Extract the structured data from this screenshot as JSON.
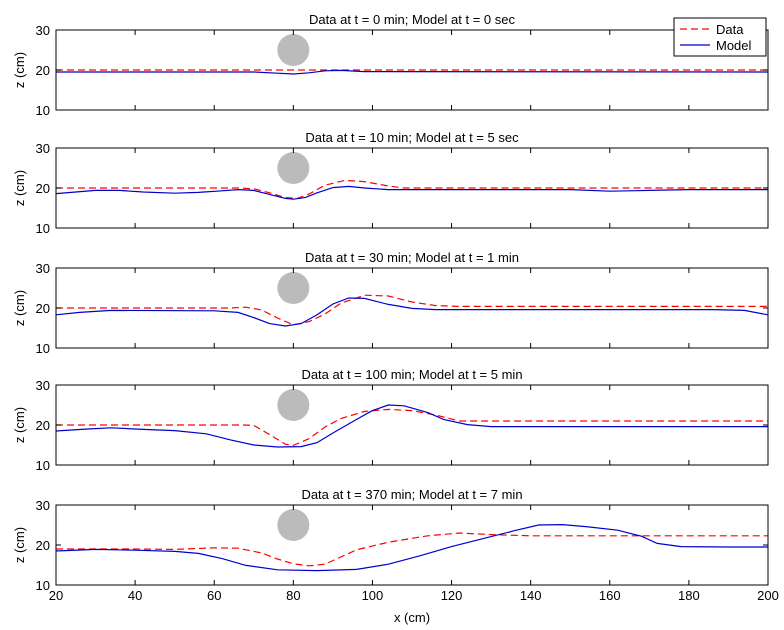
{
  "chart_data": {
    "type": "line",
    "xlabel": "x (cm)",
    "xlim": [
      20,
      200
    ],
    "xticks": [
      20,
      40,
      60,
      80,
      100,
      120,
      140,
      160,
      180,
      200
    ],
    "ylabel": "z (cm)",
    "ylim": [
      10,
      30
    ],
    "yticks": [
      10,
      20,
      30
    ],
    "grid": false,
    "legend": {
      "placement": "top-right",
      "entries": [
        {
          "label": "Data",
          "color": "#ff0000",
          "style": "dashed"
        },
        {
          "label": "Model",
          "color": "#0000cc",
          "style": "solid"
        }
      ]
    },
    "cylinder": {
      "x": 80,
      "z": 25,
      "radius": 4,
      "color": "#bbbbbb"
    },
    "panels": [
      {
        "title": "Data at t = 0 min; Model at t = 0 sec",
        "series": [
          {
            "name": "Data",
            "points": [
              [
                20,
                20
              ],
              [
                200,
                20
              ]
            ]
          },
          {
            "name": "Model",
            "points": [
              [
                20,
                19.5
              ],
              [
                70,
                19.5
              ],
              [
                76,
                19.2
              ],
              [
                80,
                19.0
              ],
              [
                84,
                19.3
              ],
              [
                88,
                19.8
              ],
              [
                92,
                19.9
              ],
              [
                98,
                19.6
              ],
              [
                200,
                19.5
              ]
            ]
          }
        ]
      },
      {
        "title": "Data at t = 10 min; Model at t = 5 sec",
        "series": [
          {
            "name": "Data",
            "points": [
              [
                20,
                20
              ],
              [
                66,
                20
              ],
              [
                70,
                19.8
              ],
              [
                74,
                18.8
              ],
              [
                78,
                17.6
              ],
              [
                81,
                17.4
              ],
              [
                84,
                18.5
              ],
              [
                88,
                20.7
              ],
              [
                93,
                21.9
              ],
              [
                98,
                21.6
              ],
              [
                104,
                20.5
              ],
              [
                108,
                20
              ],
              [
                200,
                20
              ]
            ]
          },
          {
            "name": "Model",
            "points": [
              [
                20,
                18.6
              ],
              [
                25,
                19
              ],
              [
                30,
                19.4
              ],
              [
                36,
                19.4
              ],
              [
                42,
                19
              ],
              [
                50,
                18.7
              ],
              [
                56,
                18.9
              ],
              [
                62,
                19.3
              ],
              [
                66,
                19.6
              ],
              [
                70,
                19.4
              ],
              [
                74,
                18.4
              ],
              [
                78,
                17.4
              ],
              [
                80,
                17.2
              ],
              [
                83,
                17.6
              ],
              [
                86,
                18.8
              ],
              [
                90,
                20.1
              ],
              [
                94,
                20.4
              ],
              [
                98,
                20
              ],
              [
                104,
                19.6
              ],
              [
                150,
                19.6
              ],
              [
                160,
                19.2
              ],
              [
                170,
                19.4
              ],
              [
                180,
                19.6
              ],
              [
                190,
                19.6
              ],
              [
                200,
                19.6
              ]
            ]
          }
        ]
      },
      {
        "title": "Data at t = 30 min; Model at t = 1 min",
        "series": [
          {
            "name": "Data",
            "points": [
              [
                20,
                20
              ],
              [
                64,
                20
              ],
              [
                68,
                20.2
              ],
              [
                72,
                19.5
              ],
              [
                76,
                17.5
              ],
              [
                80,
                15.8
              ],
              [
                84,
                16.6
              ],
              [
                88,
                18.5
              ],
              [
                92,
                21.2
              ],
              [
                98,
                23.2
              ],
              [
                104,
                23
              ],
              [
                110,
                21.5
              ],
              [
                116,
                20.6
              ],
              [
                122,
                20.4
              ],
              [
                200,
                20.4
              ]
            ]
          },
          {
            "name": "Model",
            "points": [
              [
                20,
                18.3
              ],
              [
                26,
                18.9
              ],
              [
                34,
                19.4
              ],
              [
                60,
                19.3
              ],
              [
                66,
                18.9
              ],
              [
                70,
                17.6
              ],
              [
                74,
                16.1
              ],
              [
                78,
                15.5
              ],
              [
                82,
                16.1
              ],
              [
                86,
                18.3
              ],
              [
                90,
                21
              ],
              [
                94,
                22.5
              ],
              [
                98,
                22.4
              ],
              [
                104,
                20.9
              ],
              [
                110,
                19.9
              ],
              [
                116,
                19.6
              ],
              [
                186,
                19.6
              ],
              [
                194,
                19.4
              ],
              [
                200,
                18.3
              ]
            ]
          }
        ]
      },
      {
        "title": "Data at t = 100 min; Model at t = 5 min",
        "series": [
          {
            "name": "Data",
            "points": [
              [
                20,
                20
              ],
              [
                60,
                20
              ],
              [
                67,
                20
              ],
              [
                70,
                19.9
              ],
              [
                74,
                17.6
              ],
              [
                78,
                15.2
              ],
              [
                80,
                14.9
              ],
              [
                84,
                16.6
              ],
              [
                88,
                19.5
              ],
              [
                92,
                21.6
              ],
              [
                98,
                23.4
              ],
              [
                104,
                23.9
              ],
              [
                110,
                23.6
              ],
              [
                116,
                22.5
              ],
              [
                122,
                21
              ],
              [
                200,
                21
              ]
            ]
          },
          {
            "name": "Model",
            "points": [
              [
                20,
                18.5
              ],
              [
                28,
                19
              ],
              [
                34,
                19.3
              ],
              [
                42,
                18.9
              ],
              [
                50,
                18.6
              ],
              [
                58,
                17.8
              ],
              [
                64,
                16.3
              ],
              [
                70,
                15
              ],
              [
                76,
                14.5
              ],
              [
                82,
                14.6
              ],
              [
                86,
                15.6
              ],
              [
                90,
                18
              ],
              [
                96,
                21.4
              ],
              [
                100,
                23.6
              ],
              [
                104,
                25.0
              ],
              [
                108,
                24.8
              ],
              [
                114,
                23.1
              ],
              [
                118,
                21.4
              ],
              [
                124,
                20.1
              ],
              [
                130,
                19.6
              ],
              [
                200,
                19.6
              ]
            ]
          }
        ]
      },
      {
        "title": "Data at t = 370 min; Model at t = 7 min",
        "series": [
          {
            "name": "Data",
            "points": [
              [
                20,
                19
              ],
              [
                40,
                19
              ],
              [
                50,
                18.9
              ],
              [
                60,
                19.3
              ],
              [
                66,
                19.2
              ],
              [
                72,
                18
              ],
              [
                76,
                16.5
              ],
              [
                80,
                15.3
              ],
              [
                84,
                14.8
              ],
              [
                88,
                15.2
              ],
              [
                92,
                17
              ],
              [
                96,
                18.8
              ],
              [
                104,
                20.7
              ],
              [
                114,
                22.3
              ],
              [
                122,
                23
              ],
              [
                130,
                22.6
              ],
              [
                140,
                22.3
              ],
              [
                200,
                22.3
              ]
            ]
          },
          {
            "name": "Model",
            "points": [
              [
                20,
                18.5
              ],
              [
                30,
                18.9
              ],
              [
                40,
                18.7
              ],
              [
                50,
                18.4
              ],
              [
                56,
                17.9
              ],
              [
                62,
                16.6
              ],
              [
                68,
                14.9
              ],
              [
                76,
                13.8
              ],
              [
                86,
                13.6
              ],
              [
                96,
                13.9
              ],
              [
                104,
                15.2
              ],
              [
                112,
                17.3
              ],
              [
                120,
                19.6
              ],
              [
                128,
                21.6
              ],
              [
                136,
                23.6
              ],
              [
                142,
                25
              ],
              [
                148,
                25.1
              ],
              [
                154,
                24.6
              ],
              [
                162,
                23.7
              ],
              [
                168,
                22.2
              ],
              [
                172,
                20.4
              ],
              [
                178,
                19.6
              ],
              [
                190,
                19.5
              ],
              [
                200,
                19.5
              ]
            ]
          }
        ]
      }
    ]
  }
}
